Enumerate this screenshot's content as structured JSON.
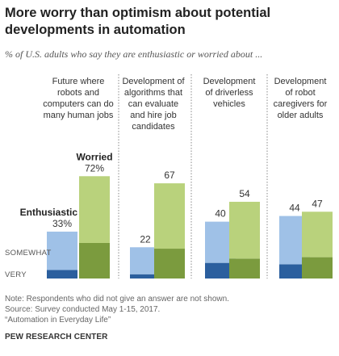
{
  "title_line1": "More worry than optimism about potential",
  "title_line2": "developments in automation",
  "subtitle": "% of U.S. adults who say they are enthusiastic or worried about ...",
  "colors": {
    "enthusiastic_very": "#2b5f9e",
    "enthusiastic_somewhat": "#9fc1e7",
    "worried_very": "#7b9b3e",
    "worried_somewhat": "#b9d27c",
    "divider": "#888888"
  },
  "legend": {
    "enthusiastic": "Enthusiastic",
    "worried": "Worried",
    "somewhat": "SOMEWHAT",
    "very": "VERY"
  },
  "chart_data": {
    "type": "bar",
    "stacked": true,
    "ylim": [
      0,
      100
    ],
    "groups": [
      {
        "label_lines": [
          "Future where",
          "robots and",
          "computers can do",
          "many human jobs"
        ],
        "enthusiastic": {
          "total": 33,
          "total_label": "33%",
          "very": 6,
          "somewhat": 27
        },
        "worried": {
          "total": 72,
          "total_label": "72%",
          "very": 25,
          "somewhat": 47
        }
      },
      {
        "label_lines": [
          "Development of",
          "algorithms that",
          "can evaluate",
          "and hire job",
          "candidates"
        ],
        "enthusiastic": {
          "total": 22,
          "total_label": "22",
          "very": 3,
          "somewhat": 19
        },
        "worried": {
          "total": 67,
          "total_label": "67",
          "very": 21,
          "somewhat": 46
        }
      },
      {
        "label_lines": [
          "Development",
          "of driverless",
          "vehicles"
        ],
        "enthusiastic": {
          "total": 40,
          "total_label": "40",
          "very": 11,
          "somewhat": 29
        },
        "worried": {
          "total": 54,
          "total_label": "54",
          "very": 14,
          "somewhat": 40
        }
      },
      {
        "label_lines": [
          "Development",
          "of robot",
          "caregivers for",
          "older adults"
        ],
        "enthusiastic": {
          "total": 44,
          "total_label": "44",
          "very": 10,
          "somewhat": 34
        },
        "worried": {
          "total": 47,
          "total_label": "47",
          "very": 15,
          "somewhat": 32
        }
      }
    ]
  },
  "notes": [
    "Note: Respondents who did not give an answer are not shown.",
    "Source: Survey conducted May 1-15, 2017.",
    "“Automation in Everyday Life”"
  ],
  "credit": "PEW RESEARCH CENTER"
}
